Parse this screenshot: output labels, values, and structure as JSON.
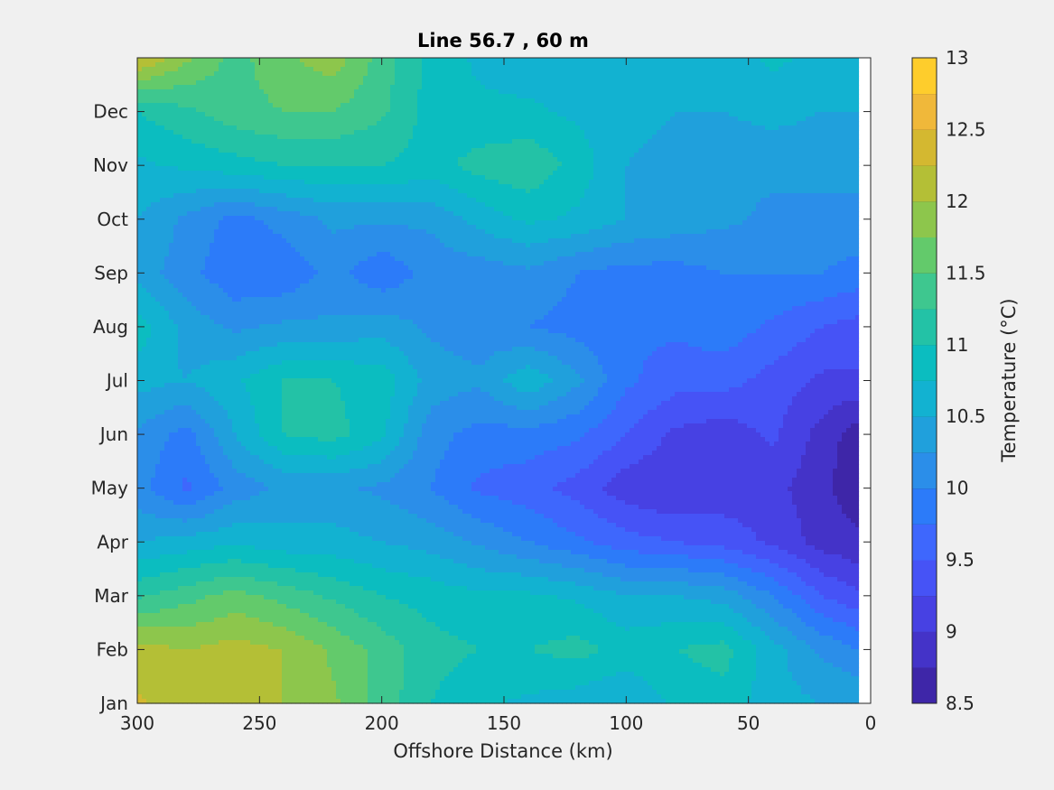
{
  "chart_data": {
    "type": "heatmap",
    "title": "Line 56.7 , 60 m",
    "xlabel": "Offshore Distance (km)",
    "ylabel": "",
    "xlim": [
      300,
      0
    ],
    "x_direction": "reversed",
    "xticks": [
      "300",
      "250",
      "200",
      "150",
      "100",
      "50",
      "0"
    ],
    "xtick_values": [
      300,
      250,
      200,
      150,
      100,
      50,
      0
    ],
    "ylim": [
      "Jan",
      "end of Dec"
    ],
    "yticks": [
      "Jan",
      "Feb",
      "Mar",
      "Apr",
      "May",
      "Jun",
      "Jul",
      "Aug",
      "Sep",
      "Oct",
      "Nov",
      "Dec"
    ],
    "data_x_range": [
      300,
      5
    ],
    "colorbar": {
      "label": "Temperature (°C)",
      "range": [
        8.5,
        13
      ],
      "levels": [
        8.5,
        8.75,
        9,
        9.25,
        9.5,
        9.75,
        10,
        10.25,
        10.5,
        10.75,
        11,
        11.25,
        11.5,
        11.75,
        12,
        12.25,
        12.5,
        12.75,
        13
      ],
      "tick_labels": [
        "13",
        "12.5",
        "12",
        "11.5",
        "11",
        "10.5",
        "10",
        "9.5",
        "9",
        "8.5"
      ],
      "tick_values": [
        13,
        12.5,
        12,
        11.5,
        11,
        10.5,
        10,
        9.5,
        9,
        8.5
      ],
      "colors": [
        "#3e26a8",
        "#4433c8",
        "#4741e3",
        "#4653f6",
        "#3e67fd",
        "#2c7bf9",
        "#2b8ee9",
        "#20a0dc",
        "#12b2d1",
        "#0bbdc0",
        "#23c2a6",
        "#3ec78f",
        "#63ca6b",
        "#8dc64c",
        "#b4bf36",
        "#d4b830",
        "#f0b83a",
        "#fecd2c",
        "#f5e41c"
      ]
    },
    "distance_km": [
      300,
      280,
      260,
      240,
      220,
      200,
      180,
      160,
      140,
      120,
      100,
      80,
      60,
      40,
      20,
      5
    ],
    "month_index": [
      0,
      1,
      2,
      3,
      4,
      5,
      6,
      7,
      8,
      9,
      10,
      11,
      12
    ],
    "month_note": "rows: 0=Jan ... 11=Dec, 12=end of Dec",
    "temperature": [
      [
        12.3,
        12.1,
        12.1,
        12.0,
        11.8,
        11.4,
        11.0,
        10.8,
        10.7,
        10.6,
        10.5,
        10.8,
        10.9,
        10.6,
        10.5,
        10.5
      ],
      [
        12.1,
        12.0,
        12.1,
        12.0,
        11.7,
        11.4,
        11.1,
        11.0,
        11.0,
        11.1,
        10.9,
        11.0,
        11.1,
        10.6,
        10.2,
        10.0
      ],
      [
        11.2,
        11.4,
        11.6,
        11.4,
        11.2,
        11.0,
        10.9,
        10.8,
        10.8,
        10.7,
        10.5,
        10.5,
        10.4,
        10.0,
        9.5,
        9.3
      ],
      [
        10.5,
        10.6,
        10.7,
        10.6,
        10.6,
        10.5,
        10.4,
        10.2,
        10.0,
        9.8,
        9.6,
        9.5,
        9.4,
        9.2,
        8.9,
        8.8
      ],
      [
        10.1,
        9.7,
        10.1,
        10.3,
        10.3,
        10.2,
        10.0,
        9.7,
        9.6,
        9.4,
        9.1,
        9.0,
        9.1,
        9.1,
        8.8,
        8.6
      ],
      [
        10.2,
        9.9,
        10.5,
        11.0,
        11.1,
        10.8,
        10.1,
        9.9,
        9.9,
        9.8,
        9.5,
        9.2,
        9.1,
        9.3,
        8.9,
        8.6
      ],
      [
        10.6,
        10.5,
        10.7,
        11.0,
        11.0,
        10.9,
        10.4,
        10.3,
        10.7,
        10.3,
        9.8,
        9.6,
        9.6,
        9.4,
        9.2,
        9.2
      ],
      [
        10.9,
        10.4,
        10.2,
        10.3,
        10.3,
        10.4,
        10.2,
        10.1,
        10.0,
        9.9,
        9.8,
        9.8,
        9.9,
        9.7,
        9.5,
        9.4
      ],
      [
        10.4,
        10.1,
        9.8,
        9.8,
        10.1,
        9.8,
        10.1,
        10.1,
        10.2,
        10.0,
        9.9,
        9.9,
        10.0,
        10.0,
        10.0,
        9.9
      ],
      [
        10.5,
        10.2,
        9.9,
        10.1,
        10.3,
        10.3,
        10.3,
        10.6,
        10.8,
        10.7,
        10.5,
        10.4,
        10.3,
        10.2,
        10.2,
        10.2
      ],
      [
        10.7,
        10.8,
        10.9,
        11.0,
        11.0,
        11.0,
        10.9,
        11.1,
        11.2,
        10.9,
        10.5,
        10.4,
        10.3,
        10.3,
        10.3,
        10.3
      ],
      [
        11.0,
        11.2,
        11.4,
        11.5,
        11.5,
        11.3,
        10.9,
        10.8,
        10.8,
        10.7,
        10.6,
        10.5,
        10.5,
        10.6,
        10.5,
        10.5
      ],
      [
        12.3,
        11.8,
        11.4,
        11.7,
        11.9,
        11.4,
        10.9,
        10.7,
        10.6,
        10.6,
        10.6,
        10.6,
        10.6,
        10.8,
        10.7,
        10.6
      ]
    ]
  }
}
